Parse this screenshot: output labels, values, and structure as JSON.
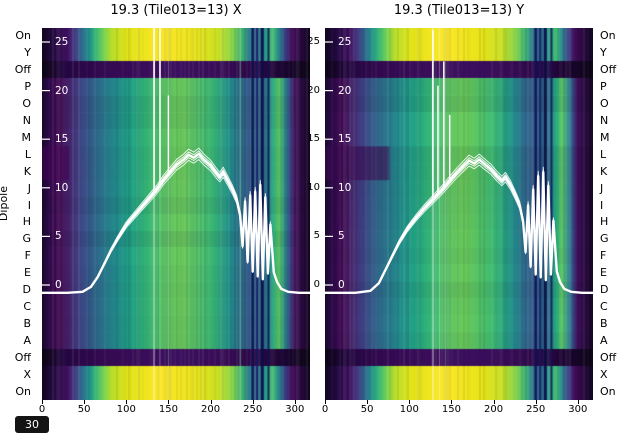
{
  "figure": {
    "badge": "30"
  },
  "dipole_axis": {
    "label": "Dipole",
    "rows": [
      "On",
      "Y",
      "Off",
      "P",
      "O",
      "N",
      "M",
      "L",
      "K",
      "J",
      "I",
      "H",
      "G",
      "F",
      "E",
      "D",
      "C",
      "B",
      "A",
      "Off",
      "X",
      "On"
    ]
  },
  "chart_data": {
    "type": "heatmap",
    "colormap": "viridis",
    "x_ticks": [
      0,
      50,
      100,
      150,
      200,
      250,
      300
    ],
    "x_range": [
      0,
      318
    ],
    "db_ticks": [
      25,
      20,
      15,
      10,
      5,
      0
    ],
    "rows": [
      "On",
      "Y",
      "Off",
      "P",
      "O",
      "N",
      "M",
      "L",
      "K",
      "J",
      "I",
      "H",
      "G",
      "F",
      "E",
      "D",
      "C",
      "B",
      "A",
      "Off",
      "X",
      "On"
    ],
    "row_types": [
      "bright",
      "bright",
      "dark",
      "body",
      "body",
      "body",
      "body",
      "body",
      "body",
      "body",
      "body",
      "body",
      "body",
      "body",
      "body",
      "body",
      "body",
      "body",
      "body",
      "dark",
      "bright",
      "bright"
    ],
    "gradients": {
      "body": [
        [
          0.0,
          "#1a0a2e"
        ],
        [
          0.03,
          "#330a4e"
        ],
        [
          0.065,
          "#440a54"
        ],
        [
          0.1,
          "#46256e"
        ],
        [
          0.14,
          "#414487"
        ],
        [
          0.18,
          "#35608d"
        ],
        [
          0.23,
          "#2a788e"
        ],
        [
          0.28,
          "#23908d"
        ],
        [
          0.34,
          "#22a884"
        ],
        [
          0.4,
          "#3bbb75"
        ],
        [
          0.46,
          "#5ec962"
        ],
        [
          0.52,
          "#6ccd5a"
        ],
        [
          0.58,
          "#54c568"
        ],
        [
          0.63,
          "#3dbc74"
        ],
        [
          0.675,
          "#27a383"
        ],
        [
          0.71,
          "#23898e"
        ],
        [
          0.745,
          "#2f6c8e"
        ],
        [
          0.775,
          "#355e8d"
        ],
        [
          0.81,
          "#31688e"
        ],
        [
          0.835,
          "#2e738e"
        ],
        [
          0.862,
          "#27ad81"
        ],
        [
          0.885,
          "#5ec962"
        ],
        [
          0.905,
          "#2f978d"
        ],
        [
          0.925,
          "#3b4e8b"
        ],
        [
          0.942,
          "#45125e"
        ],
        [
          0.965,
          "#2d0a44"
        ],
        [
          1.0,
          "#150722"
        ]
      ],
      "bright": [
        [
          0.0,
          "#10061e"
        ],
        [
          0.05,
          "#270a46"
        ],
        [
          0.09,
          "#3c0a59"
        ],
        [
          0.12,
          "#453781"
        ],
        [
          0.15,
          "#2f6b8e"
        ],
        [
          0.175,
          "#24948c"
        ],
        [
          0.2,
          "#37b878"
        ],
        [
          0.23,
          "#74d055"
        ],
        [
          0.26,
          "#b8de2a"
        ],
        [
          0.32,
          "#e2e418"
        ],
        [
          0.45,
          "#fde725"
        ],
        [
          0.58,
          "#e8e419"
        ],
        [
          0.66,
          "#c8e022"
        ],
        [
          0.71,
          "#8ad54a"
        ],
        [
          0.745,
          "#41bb72"
        ],
        [
          0.775,
          "#2a7a8e"
        ],
        [
          0.8,
          "#34618d"
        ],
        [
          0.83,
          "#27948c"
        ],
        [
          0.86,
          "#44bf70"
        ],
        [
          0.885,
          "#27828e"
        ],
        [
          0.91,
          "#3f3b84"
        ],
        [
          0.935,
          "#430a55"
        ],
        [
          0.965,
          "#27083e"
        ],
        [
          1.0,
          "#10061e"
        ]
      ],
      "dark": [
        [
          0.0,
          "#0c0514"
        ],
        [
          0.08,
          "#230640"
        ],
        [
          0.2,
          "#32094f"
        ],
        [
          0.35,
          "#3a0d59"
        ],
        [
          0.5,
          "#3d1060"
        ],
        [
          0.65,
          "#3a0d59"
        ],
        [
          0.78,
          "#2e0849"
        ],
        [
          0.9,
          "#1d0533"
        ],
        [
          1.0,
          "#0c0514"
        ]
      ]
    },
    "plots": [
      {
        "title": "19.3 (Tile013=13) X",
        "curve": [
          [
            0,
            -0.8
          ],
          [
            30,
            -0.8
          ],
          [
            48,
            -0.7
          ],
          [
            58,
            -0.2
          ],
          [
            66,
            0.8
          ],
          [
            74,
            2.2
          ],
          [
            82,
            3.6
          ],
          [
            90,
            4.8
          ],
          [
            100,
            6.2
          ],
          [
            110,
            7.2
          ],
          [
            120,
            8.2
          ],
          [
            128,
            9.0
          ],
          [
            136,
            9.8
          ],
          [
            144,
            10.8
          ],
          [
            152,
            11.6
          ],
          [
            160,
            12.4
          ],
          [
            168,
            12.9
          ],
          [
            174,
            13.4
          ],
          [
            180,
            13.1
          ],
          [
            186,
            13.5
          ],
          [
            192,
            12.9
          ],
          [
            200,
            12.3
          ],
          [
            206,
            11.6
          ],
          [
            211,
            11.1
          ],
          [
            215,
            11.6
          ],
          [
            220,
            10.8
          ],
          [
            226,
            9.8
          ],
          [
            231,
            8.8
          ],
          [
            235,
            7.2
          ],
          [
            238,
            4.0
          ],
          [
            241,
            8.6
          ],
          [
            244,
            2.4
          ],
          [
            247,
            9.2
          ],
          [
            250,
            1.4
          ],
          [
            253,
            9.6
          ],
          [
            256,
            0.9
          ],
          [
            259,
            10.3
          ],
          [
            262,
            0.6
          ],
          [
            265,
            9.0
          ],
          [
            268,
            1.2
          ],
          [
            271,
            6.2
          ],
          [
            275,
            1.3
          ],
          [
            279,
            0.3
          ],
          [
            284,
            -0.4
          ],
          [
            292,
            -0.7
          ],
          [
            305,
            -0.8
          ],
          [
            318,
            -0.8
          ]
        ],
        "spikes": [
          {
            "x": 133,
            "top": 26.8
          },
          {
            "x": 140,
            "top": 27.5
          },
          {
            "x": 150,
            "top": 19.5
          }
        ],
        "stripes": [
          {
            "f": 0.786,
            "w": 2.5,
            "color": "rgba(13,18,80,0.9)"
          },
          {
            "f": 0.803,
            "w": 2,
            "color": "rgba(20,26,100,0.85)"
          },
          {
            "f": 0.822,
            "w": 3,
            "color": "rgba(10,14,70,0.92)"
          },
          {
            "f": 0.845,
            "w": 2,
            "color": "rgba(16,20,88,0.85)"
          },
          {
            "f": 0.74,
            "w": 1.5,
            "color": "rgba(150,230,160,0.45)"
          },
          {
            "f": 0.418,
            "w": 1.5,
            "color": "rgba(255,255,255,0.5)"
          },
          {
            "f": 0.44,
            "w": 1,
            "color": "rgba(255,255,255,0.35)"
          },
          {
            "f": 0.472,
            "w": 1,
            "color": "rgba(220,255,220,0.3)"
          }
        ],
        "patches": [
          {
            "r0": 7,
            "r1": 9,
            "f0": 0.0,
            "f1": 0.1,
            "color": "rgba(68,1,84,0.55)"
          }
        ]
      },
      {
        "title": "19.3 (Tile013=13) Y",
        "curve": [
          [
            0,
            -0.8
          ],
          [
            36,
            -0.8
          ],
          [
            54,
            -0.6
          ],
          [
            64,
            0.2
          ],
          [
            72,
            1.6
          ],
          [
            80,
            3.0
          ],
          [
            88,
            4.4
          ],
          [
            98,
            5.8
          ],
          [
            108,
            6.9
          ],
          [
            118,
            7.9
          ],
          [
            128,
            8.8
          ],
          [
            138,
            9.7
          ],
          [
            148,
            10.7
          ],
          [
            156,
            11.5
          ],
          [
            164,
            12.2
          ],
          [
            171,
            12.8
          ],
          [
            177,
            12.5
          ],
          [
            183,
            12.9
          ],
          [
            190,
            12.4
          ],
          [
            197,
            11.9
          ],
          [
            204,
            11.2
          ],
          [
            210,
            10.7
          ],
          [
            214,
            11.1
          ],
          [
            220,
            10.3
          ],
          [
            226,
            9.2
          ],
          [
            231,
            8.2
          ],
          [
            235,
            6.5
          ],
          [
            238,
            3.4
          ],
          [
            241,
            8.2
          ],
          [
            244,
            1.9
          ],
          [
            247,
            9.8
          ],
          [
            250,
            1.1
          ],
          [
            253,
            11.2
          ],
          [
            256,
            0.8
          ],
          [
            259,
            11.6
          ],
          [
            262,
            0.5
          ],
          [
            265,
            10.2
          ],
          [
            268,
            1.1
          ],
          [
            271,
            6.6
          ],
          [
            275,
            1.4
          ],
          [
            279,
            0.3
          ],
          [
            284,
            -0.4
          ],
          [
            292,
            -0.7
          ],
          [
            305,
            -0.8
          ],
          [
            318,
            -0.8
          ]
        ],
        "spikes": [
          {
            "x": 128,
            "top": 26.2
          },
          {
            "x": 134,
            "top": 20.5
          },
          {
            "x": 141,
            "top": 23.0
          },
          {
            "x": 148,
            "top": 17.5
          }
        ],
        "stripes": [
          {
            "f": 0.786,
            "w": 2.5,
            "color": "rgba(13,18,80,0.9)"
          },
          {
            "f": 0.803,
            "w": 2,
            "color": "rgba(20,26,100,0.85)"
          },
          {
            "f": 0.822,
            "w": 3,
            "color": "rgba(10,14,70,0.92)"
          },
          {
            "f": 0.845,
            "w": 2,
            "color": "rgba(16,20,88,0.85)"
          },
          {
            "f": 0.403,
            "w": 1.5,
            "color": "rgba(255,255,255,0.5)"
          },
          {
            "f": 0.427,
            "w": 1,
            "color": "rgba(255,255,255,0.35)"
          },
          {
            "f": 0.45,
            "w": 1,
            "color": "rgba(220,255,220,0.3)"
          }
        ],
        "patches": [
          {
            "r0": 7,
            "r1": 9,
            "f0": 0.0,
            "f1": 0.24,
            "color": "rgba(60,10,80,0.6)"
          }
        ]
      }
    ]
  }
}
